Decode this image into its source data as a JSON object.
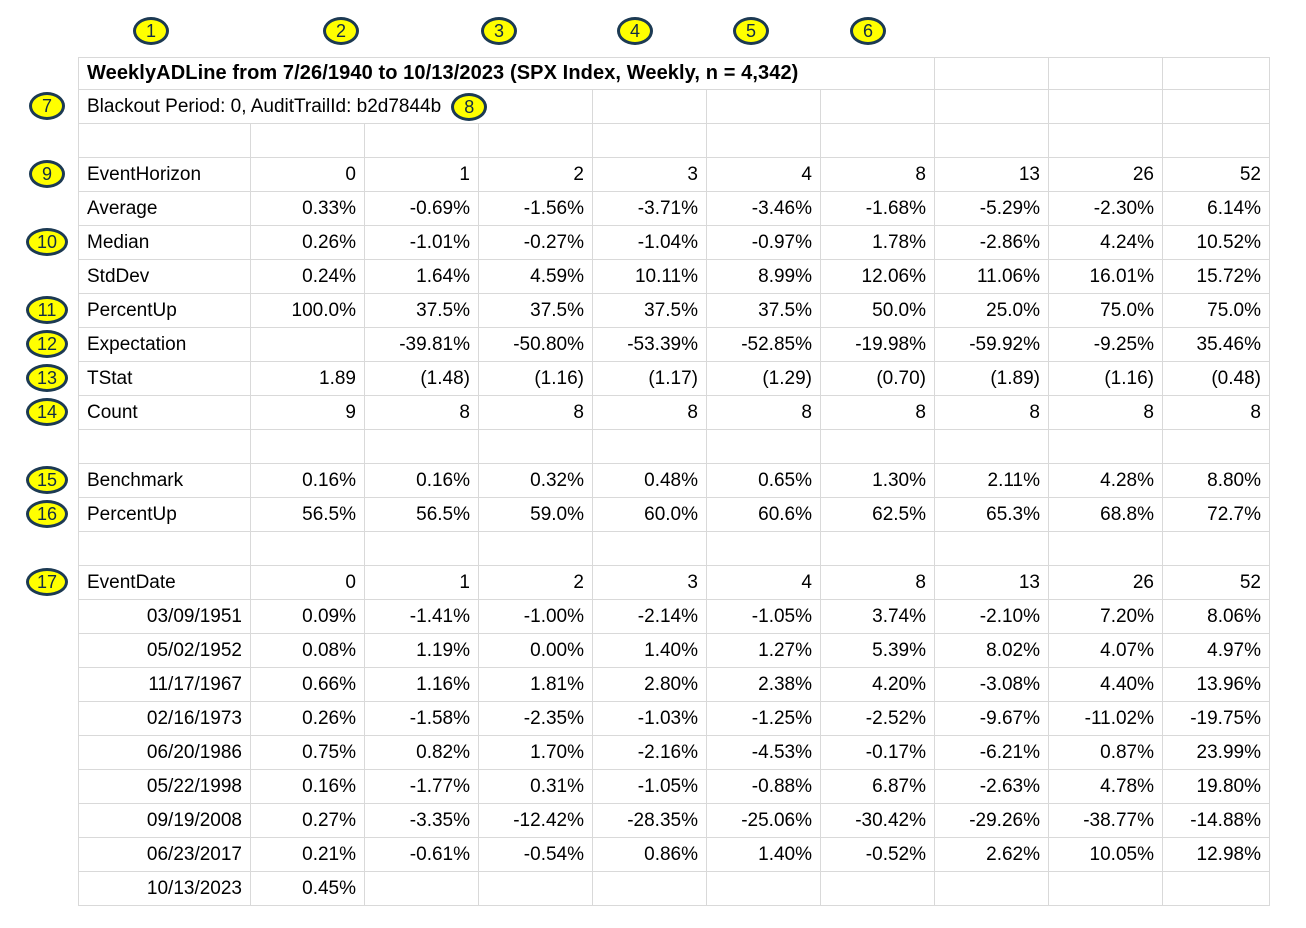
{
  "title": "WeeklyADLine from 7/26/1940 to 10/13/2023 (SPX Index, Weekly, n = 4,342)",
  "subtitle": "Blackout Period: 0, AuditTrailId: b2d7844b",
  "callouts": {
    "top": [
      "1",
      "2",
      "3",
      "4",
      "5",
      "6"
    ],
    "left": [
      {
        "n": "7",
        "row": 1
      },
      {
        "n": "9",
        "row": 3
      },
      {
        "n": "10",
        "row": 5
      },
      {
        "n": "11",
        "row": 7
      },
      {
        "n": "12",
        "row": 8
      },
      {
        "n": "13",
        "row": 9
      },
      {
        "n": "14",
        "row": 10
      },
      {
        "n": "15",
        "row": 12
      },
      {
        "n": "16",
        "row": 13
      },
      {
        "n": "17",
        "row": 15
      }
    ],
    "inline": {
      "n": "8"
    }
  },
  "grid": {
    "rows": [
      {
        "type": "title"
      },
      {
        "type": "subtitle"
      },
      {
        "type": "empty"
      },
      {
        "type": "data",
        "label": "EventHorizon",
        "align": "left",
        "cells": [
          "0",
          "1",
          "2",
          "3",
          "4",
          "8",
          "13",
          "26",
          "52"
        ]
      },
      {
        "type": "data",
        "label": "Average",
        "align": "left",
        "cells": [
          "0.33%",
          "-0.69%",
          "-1.56%",
          "-3.71%",
          "-3.46%",
          "-1.68%",
          "-5.29%",
          "-2.30%",
          "6.14%"
        ]
      },
      {
        "type": "data",
        "label": "Median",
        "align": "left",
        "cells": [
          "0.26%",
          "-1.01%",
          "-0.27%",
          "-1.04%",
          "-0.97%",
          "1.78%",
          "-2.86%",
          "4.24%",
          "10.52%"
        ]
      },
      {
        "type": "data",
        "label": "StdDev",
        "align": "left",
        "cells": [
          "0.24%",
          "1.64%",
          "4.59%",
          "10.11%",
          "8.99%",
          "12.06%",
          "11.06%",
          "16.01%",
          "15.72%"
        ]
      },
      {
        "type": "data",
        "label": "PercentUp",
        "align": "left",
        "cells": [
          "100.0%",
          "37.5%",
          "37.5%",
          "37.5%",
          "37.5%",
          "50.0%",
          "25.0%",
          "75.0%",
          "75.0%"
        ]
      },
      {
        "type": "data",
        "label": "Expectation",
        "align": "left",
        "cells": [
          "",
          "-39.81%",
          "-50.80%",
          "-53.39%",
          "-52.85%",
          "-19.98%",
          "-59.92%",
          "-9.25%",
          "35.46%"
        ]
      },
      {
        "type": "data",
        "label": "TStat",
        "align": "left",
        "cells": [
          "1.89",
          "(1.48)",
          "(1.16)",
          "(1.17)",
          "(1.29)",
          "(0.70)",
          "(1.89)",
          "(1.16)",
          "(0.48)"
        ]
      },
      {
        "type": "data",
        "label": "Count",
        "align": "left",
        "cells": [
          "9",
          "8",
          "8",
          "8",
          "8",
          "8",
          "8",
          "8",
          "8"
        ]
      },
      {
        "type": "empty"
      },
      {
        "type": "data",
        "label": "Benchmark",
        "align": "left",
        "cells": [
          "0.16%",
          "0.16%",
          "0.32%",
          "0.48%",
          "0.65%",
          "1.30%",
          "2.11%",
          "4.28%",
          "8.80%"
        ]
      },
      {
        "type": "data",
        "label": "PercentUp",
        "align": "left",
        "cells": [
          "56.5%",
          "56.5%",
          "59.0%",
          "60.0%",
          "60.6%",
          "62.5%",
          "65.3%",
          "68.8%",
          "72.7%"
        ]
      },
      {
        "type": "empty"
      },
      {
        "type": "data",
        "label": "EventDate",
        "align": "left",
        "cells": [
          "0",
          "1",
          "2",
          "3",
          "4",
          "8",
          "13",
          "26",
          "52"
        ]
      },
      {
        "type": "data",
        "label": "03/09/1951",
        "align": "right",
        "cells": [
          "0.09%",
          "-1.41%",
          "-1.00%",
          "-2.14%",
          "-1.05%",
          "3.74%",
          "-2.10%",
          "7.20%",
          "8.06%"
        ]
      },
      {
        "type": "data",
        "label": "05/02/1952",
        "align": "right",
        "cells": [
          "0.08%",
          "1.19%",
          "0.00%",
          "1.40%",
          "1.27%",
          "5.39%",
          "8.02%",
          "4.07%",
          "4.97%"
        ]
      },
      {
        "type": "data",
        "label": "11/17/1967",
        "align": "right",
        "cells": [
          "0.66%",
          "1.16%",
          "1.81%",
          "2.80%",
          "2.38%",
          "4.20%",
          "-3.08%",
          "4.40%",
          "13.96%"
        ]
      },
      {
        "type": "data",
        "label": "02/16/1973",
        "align": "right",
        "cells": [
          "0.26%",
          "-1.58%",
          "-2.35%",
          "-1.03%",
          "-1.25%",
          "-2.52%",
          "-9.67%",
          "-11.02%",
          "-19.75%"
        ]
      },
      {
        "type": "data",
        "label": "06/20/1986",
        "align": "right",
        "cells": [
          "0.75%",
          "0.82%",
          "1.70%",
          "-2.16%",
          "-4.53%",
          "-0.17%",
          "-6.21%",
          "0.87%",
          "23.99%"
        ]
      },
      {
        "type": "data",
        "label": "05/22/1998",
        "align": "right",
        "cells": [
          "0.16%",
          "-1.77%",
          "0.31%",
          "-1.05%",
          "-0.88%",
          "6.87%",
          "-2.63%",
          "4.78%",
          "19.80%"
        ]
      },
      {
        "type": "data",
        "label": "09/19/2008",
        "align": "right",
        "cells": [
          "0.27%",
          "-3.35%",
          "-12.42%",
          "-28.35%",
          "-25.06%",
          "-30.42%",
          "-29.26%",
          "-38.77%",
          "-14.88%"
        ]
      },
      {
        "type": "data",
        "label": "06/23/2017",
        "align": "right",
        "cells": [
          "0.21%",
          "-0.61%",
          "-0.54%",
          "0.86%",
          "1.40%",
          "-0.52%",
          "2.62%",
          "10.05%",
          "12.98%"
        ]
      },
      {
        "type": "data",
        "label": "10/13/2023",
        "align": "right",
        "cells": [
          "0.45%",
          "",
          "",
          "",
          "",
          "",
          "",
          "",
          ""
        ]
      }
    ]
  }
}
